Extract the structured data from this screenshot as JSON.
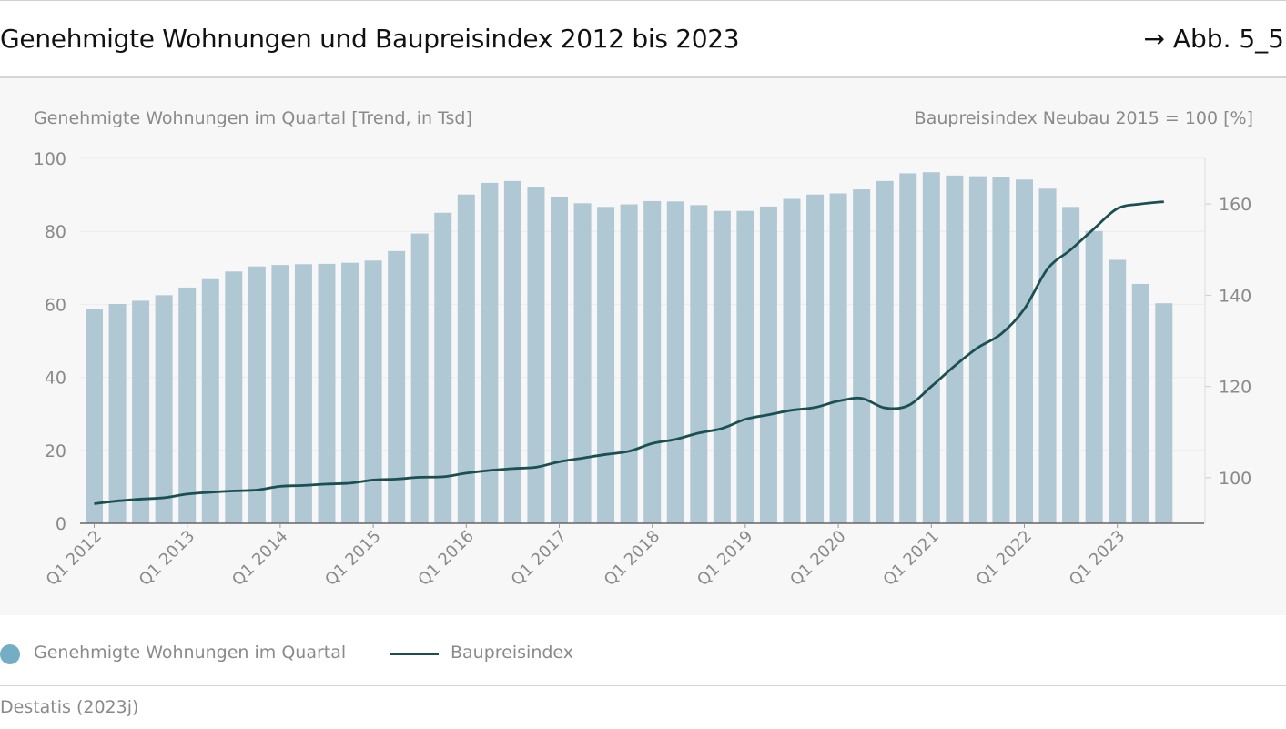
{
  "header": {
    "title": "Genehmigte Wohnungen und Baupreisindex 2012 bis 2023",
    "figure_ref": "→ Abb. 5_5"
  },
  "legend": {
    "bars_label": "Genehmigte Wohnungen im Quartal",
    "line_label": "Baupreisindex"
  },
  "source": "Destatis (2023j)",
  "colors": {
    "bar": "#b0c7d4",
    "legend_dot": "#74aec4",
    "line": "#1c4f52",
    "panel": "#f7f7f7"
  },
  "chart_data": {
    "type": "bar+line",
    "left_axis_title": "Genehmigte Wohnungen im Quartal [Trend, in Tsd]",
    "right_axis_title": "Baupreisindex Neubau 2015 = 100 [%]",
    "left_ylim": [
      0,
      100
    ],
    "left_ticks": [
      "0",
      "20",
      "40",
      "60",
      "80",
      "100"
    ],
    "right_ylim": [
      90,
      170
    ],
    "right_ticks": [
      "100",
      "120",
      "140",
      "160"
    ],
    "x_tick_labels": [
      "Q1 2012",
      "Q1 2013",
      "Q1 2014",
      "Q1 2015",
      "Q1 2016",
      "Q1 2017",
      "Q1 2018",
      "Q1 2019",
      "Q1 2020",
      "Q1 2021",
      "Q1 2022",
      "Q1 2023"
    ],
    "categories": [
      "Q1 2012",
      "Q2 2012",
      "Q3 2012",
      "Q4 2012",
      "Q1 2013",
      "Q2 2013",
      "Q3 2013",
      "Q4 2013",
      "Q1 2014",
      "Q2 2014",
      "Q3 2014",
      "Q4 2014",
      "Q1 2015",
      "Q2 2015",
      "Q3 2015",
      "Q4 2015",
      "Q1 2016",
      "Q2 2016",
      "Q3 2016",
      "Q4 2016",
      "Q1 2017",
      "Q2 2017",
      "Q3 2017",
      "Q4 2017",
      "Q1 2018",
      "Q2 2018",
      "Q3 2018",
      "Q4 2018",
      "Q1 2019",
      "Q2 2019",
      "Q3 2019",
      "Q4 2019",
      "Q1 2020",
      "Q2 2020",
      "Q3 2020",
      "Q4 2020",
      "Q1 2021",
      "Q2 2021",
      "Q3 2021",
      "Q4 2021",
      "Q1 2022",
      "Q2 2022",
      "Q3 2022",
      "Q4 2022",
      "Q1 2023",
      "Q2 2023",
      "Q3 2023",
      "Q4 2023"
    ],
    "series": [
      {
        "name": "Genehmigte Wohnungen im Quartal",
        "type": "bar",
        "axis": "left",
        "values": [
          58.6,
          60.1,
          61.0,
          62.5,
          64.6,
          66.9,
          69.0,
          70.4,
          70.8,
          71.0,
          71.1,
          71.4,
          72.0,
          74.6,
          79.4,
          85.1,
          90.1,
          93.3,
          93.8,
          92.2,
          89.4,
          87.7,
          86.7,
          87.4,
          88.3,
          88.2,
          87.2,
          85.6,
          85.6,
          86.8,
          88.9,
          90.1,
          90.4,
          91.5,
          93.8,
          95.9,
          96.2,
          95.3,
          95.1,
          95.0,
          94.2,
          91.7,
          86.7,
          80.1,
          72.2,
          65.6,
          60.3,
          null
        ]
      },
      {
        "name": "Baupreisindex",
        "type": "line",
        "axis": "right",
        "values": [
          94.3,
          94.9,
          95.3,
          95.6,
          96.4,
          96.8,
          97.1,
          97.3,
          98.1,
          98.3,
          98.6,
          98.8,
          99.5,
          99.7,
          100.1,
          100.2,
          101.0,
          101.6,
          102.0,
          102.3,
          103.5,
          104.3,
          105.1,
          105.8,
          107.5,
          108.4,
          109.8,
          110.8,
          112.8,
          113.8,
          114.8,
          115.4,
          116.8,
          117.4,
          115.3,
          115.8,
          120.0,
          124.5,
          128.5,
          131.5,
          137.0,
          145.8,
          150.0,
          154.6,
          159.0,
          160.0,
          160.5,
          null
        ]
      }
    ]
  }
}
